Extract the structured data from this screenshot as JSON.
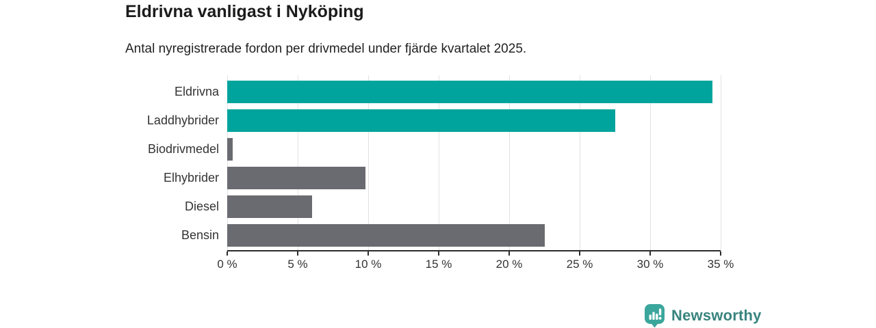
{
  "chart_data": {
    "type": "bar",
    "orientation": "horizontal",
    "title": "Eldrivna vanligast i Nyköping",
    "subtitle": "Antal nyregistrerade fordon per drivmedel under fjärde kvartalet 2025.",
    "categories": [
      "Eldrivna",
      "Laddhybrider",
      "Biodrivmedel",
      "Elhybrider",
      "Diesel",
      "Bensin"
    ],
    "values": [
      34.4,
      27.5,
      0.4,
      9.8,
      6.0,
      22.5
    ],
    "unit": "%",
    "xlabel": "",
    "ylabel": "",
    "xlim": [
      0,
      35
    ],
    "x_ticks": [
      {
        "value": 0,
        "label": "0 %"
      },
      {
        "value": 5,
        "label": "5 %"
      },
      {
        "value": 10,
        "label": "10 %"
      },
      {
        "value": 15,
        "label": "15 %"
      },
      {
        "value": 20,
        "label": "20 %"
      },
      {
        "value": 25,
        "label": "25 %"
      },
      {
        "value": 30,
        "label": "30 %"
      },
      {
        "value": 35,
        "label": "35 %"
      }
    ],
    "grid": true,
    "legend": false,
    "series_colors": {
      "highlight": "#00a49c",
      "default": "#6a6a71"
    },
    "bar_color_keys": [
      "highlight",
      "highlight",
      "default",
      "default",
      "default",
      "default"
    ]
  },
  "branding": {
    "logo_text": "Newsworthy",
    "logo_text_color": "#38847e",
    "logo_icon_color": "#3ba69c",
    "logo_icon": "bar-chart-speech-bubble-icon"
  },
  "colors": {
    "background": "#ffffff",
    "title": "#1b1b1b",
    "subtitle": "#222222",
    "axis_line": "#2b2b2b",
    "tick_label": "#333333",
    "category_label": "#333333",
    "gridline": "#e2e2e2"
  }
}
